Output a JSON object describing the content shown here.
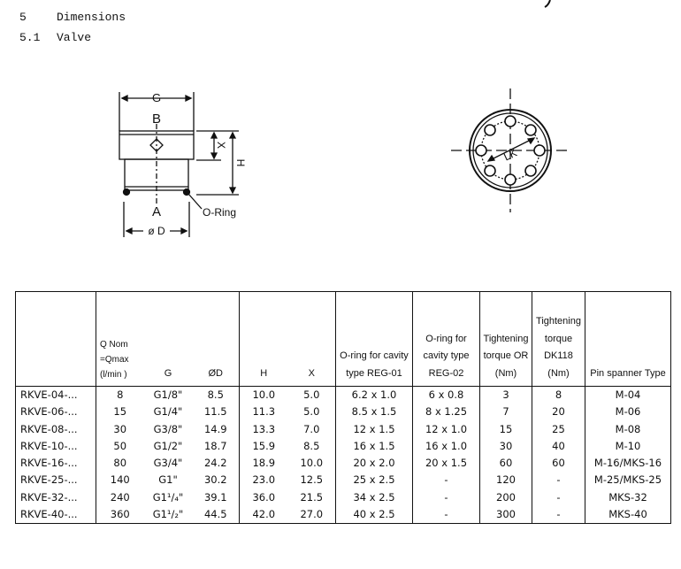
{
  "headings": [
    {
      "number": "5",
      "title": "Dimensions"
    },
    {
      "number": "5.1",
      "title": "Valve"
    }
  ],
  "drawing": {
    "labels": {
      "g": "G",
      "b": "B",
      "a": "A",
      "x": "X",
      "h": "H",
      "d": "ø D",
      "oring": "O-Ring",
      "lk": "LK"
    }
  },
  "table": {
    "headers": {
      "model": "",
      "q": "Q Nom =Qmax (l/min )",
      "g": "G",
      "d": "ØD",
      "h": "H",
      "x": "X",
      "oring01": "O-ring for cavity type REG-01",
      "oring02": "O-ring for cavity type REG-02",
      "torque_or": "Tightening torque OR (Nm)",
      "torque_dk": "Tightening torque DK118 (Nm)",
      "spanner": "Pin spanner Type"
    },
    "rows": [
      {
        "model": "RKVE-04-...",
        "q": "8",
        "g": "G1/8\"",
        "d": "8.5",
        "h": "10.0",
        "x": "5.0",
        "oring01": "6.2 x 1.0",
        "oring02": "6 x 0.8",
        "torque_or": "3",
        "torque_dk": "8",
        "spanner": "M-04"
      },
      {
        "model": "RKVE-06-...",
        "q": "15",
        "g": "G1/4\"",
        "d": "11.5",
        "h": "11.3",
        "x": "5.0",
        "oring01": "8.5 x 1.5",
        "oring02": "8 x 1.25",
        "torque_or": "7",
        "torque_dk": "20",
        "spanner": "M-06"
      },
      {
        "model": "RKVE-08-...",
        "q": "30",
        "g": "G3/8\"",
        "d": "14.9",
        "h": "13.3",
        "x": "7.0",
        "oring01": "12 x 1.5",
        "oring02": "12 x 1.0",
        "torque_or": "15",
        "torque_dk": "25",
        "spanner": "M-08"
      },
      {
        "model": "RKVE-10-...",
        "q": "50",
        "g": "G1/2\"",
        "d": "18.7",
        "h": "15.9",
        "x": "8.5",
        "oring01": "16 x 1.5",
        "oring02": "16 x 1.0",
        "torque_or": "30",
        "torque_dk": "40",
        "spanner": "M-10"
      },
      {
        "model": "RKVE-16-...",
        "q": "80",
        "g": "G3/4\"",
        "d": "24.2",
        "h": "18.9",
        "x": "10.0",
        "oring01": "20 x 2.0",
        "oring02": "20 x 1.5",
        "torque_or": "60",
        "torque_dk": "60",
        "spanner": "M-16/MKS-16"
      },
      {
        "model": "RKVE-25-...",
        "q": "140",
        "g": "G1\"",
        "d": "30.2",
        "h": "23.0",
        "x": "12.5",
        "oring01": "25 x 2.5",
        "oring02": "-",
        "torque_or": "120",
        "torque_dk": "-",
        "spanner": "M-25/MKS-25"
      },
      {
        "model": "RKVE-32-...",
        "q": "240",
        "g": "G1¹/₄\"",
        "d": "39.1",
        "h": "36.0",
        "x": "21.5",
        "oring01": "34 x 2.5",
        "oring02": "-",
        "torque_or": "200",
        "torque_dk": "-",
        "spanner": "MKS-32"
      },
      {
        "model": "RKVE-40-...",
        "q": "360",
        "g": "G1¹/₂\"",
        "d": "44.5",
        "h": "42.0",
        "x": "27.0",
        "oring01": "40 x 2.5",
        "oring02": "-",
        "torque_or": "300",
        "torque_dk": "-",
        "spanner": "MKS-40"
      }
    ]
  }
}
